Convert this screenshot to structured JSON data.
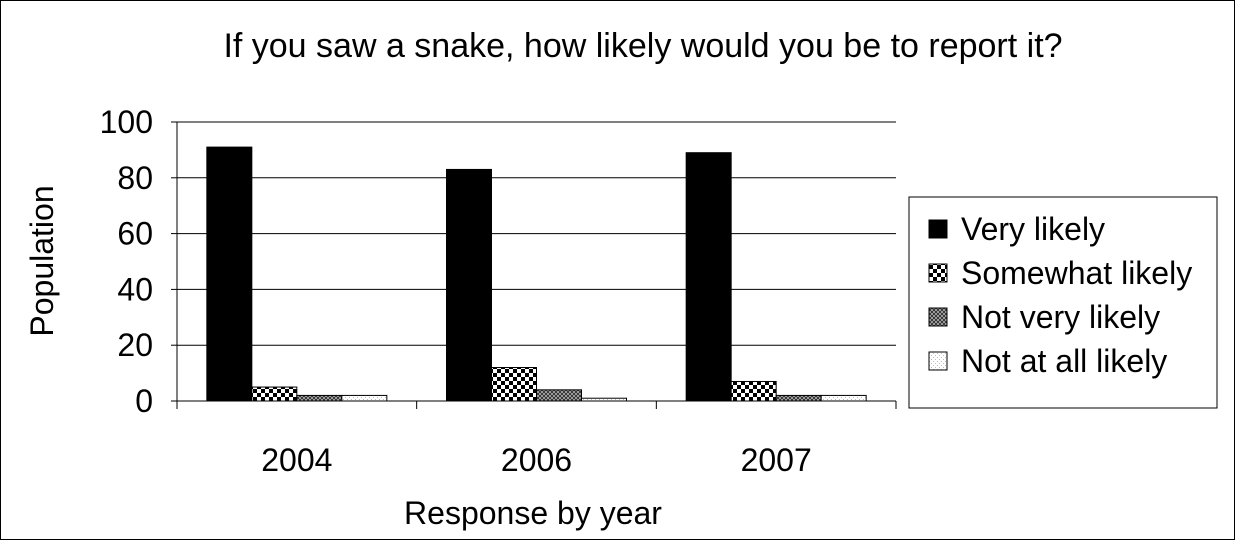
{
  "chart_data": {
    "type": "bar",
    "title": "If you saw a snake, how likely would you be to report it?",
    "xlabel": "Response by year",
    "ylabel": "Population",
    "categories": [
      "2004",
      "2006",
      "2007"
    ],
    "ylim": [
      0,
      100
    ],
    "yticks": [
      0,
      20,
      40,
      60,
      80,
      100
    ],
    "grid": true,
    "legend_position": "right",
    "series": [
      {
        "name": "Very likely",
        "values": [
          91,
          83,
          89
        ],
        "pattern": "solid"
      },
      {
        "name": "Somewhat likely",
        "values": [
          5,
          12,
          7
        ],
        "pattern": "checker"
      },
      {
        "name": "Not very likely",
        "values": [
          2,
          4,
          2
        ],
        "pattern": "fine-checker"
      },
      {
        "name": "Not at all likely",
        "values": [
          2,
          1,
          2
        ],
        "pattern": "light-dots"
      }
    ],
    "colors": {
      "series_dark": "#000000",
      "background": "#ffffff"
    }
  }
}
